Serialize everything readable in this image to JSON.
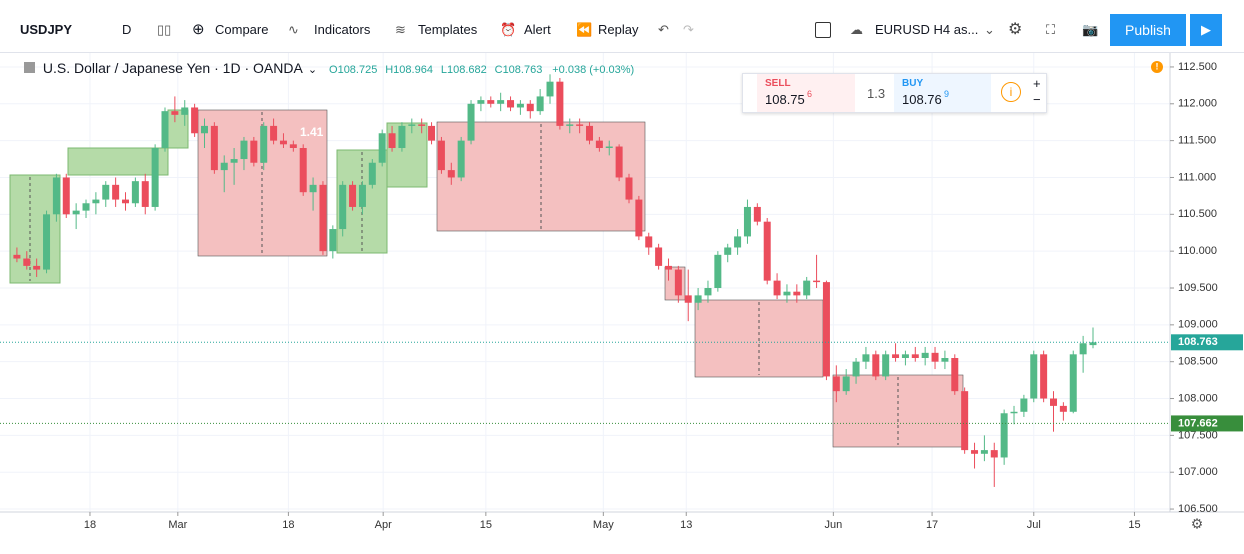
{
  "toolbar": {
    "symbol": "USDJPY",
    "interval": "D",
    "compare": "Compare",
    "indicators": "Indicators",
    "templates": "Templates",
    "alert": "Alert",
    "replay": "Replay",
    "layout": "EURUSD H4 as...",
    "publish": "Publish"
  },
  "legend": {
    "title": "U.S. Dollar / Japanese Yen · 1D · OANDA",
    "open": "O108.725",
    "high": "H108.964",
    "low": "L108.682",
    "close": "C108.763",
    "change": "+0.038 (+0.03%)"
  },
  "trade": {
    "sell_label": "SELL",
    "sell_price": "108.75",
    "sell_pip": "6",
    "spread": "1.3",
    "buy_label": "BUY",
    "buy_price": "108.76",
    "buy_pip": "9"
  },
  "chart_data": {
    "type": "candlestick",
    "up_color": "#53b987",
    "down_color": "#eb4d5c",
    "grid": true,
    "annotations": [
      "1.41"
    ],
    "ylim": [
      106.46,
      112.73
    ],
    "yticks": [
      {
        "value": 106.5,
        "label": "106.500"
      },
      {
        "value": 107,
        "label": "107.000"
      },
      {
        "value": 107.5,
        "label": "107.500"
      },
      {
        "value": 108,
        "label": "108.000"
      },
      {
        "value": 108.5,
        "label": "108.500"
      },
      {
        "value": 109,
        "label": "109.000"
      },
      {
        "value": 109.5,
        "label": "109.500"
      },
      {
        "value": 110,
        "label": "110.000"
      },
      {
        "value": 110.5,
        "label": "110.500"
      },
      {
        "value": 111,
        "label": "111.000"
      },
      {
        "value": 111.5,
        "label": "111.500"
      },
      {
        "value": 112,
        "label": "112.000"
      },
      {
        "value": 112.5,
        "label": "112.500"
      }
    ],
    "xlim": [
      -0.7,
      116.8
    ],
    "xticks": [
      {
        "value": 7.4,
        "label": "18"
      },
      {
        "value": 16.3,
        "label": "Mar"
      },
      {
        "value": 27.5,
        "label": "18"
      },
      {
        "value": 37.1,
        "label": "Apr"
      },
      {
        "value": 47.5,
        "label": "15"
      },
      {
        "value": 59.4,
        "label": "May"
      },
      {
        "value": 67.8,
        "label": "13"
      },
      {
        "value": 82.7,
        "label": "Jun"
      },
      {
        "value": 92.7,
        "label": "17"
      },
      {
        "value": 103,
        "label": "Jul"
      },
      {
        "value": 113.2,
        "label": "15"
      }
    ],
    "price_lines": [
      {
        "value": 108.763,
        "color": "#26a69a"
      },
      {
        "value": 107.662,
        "color": "#388e3c"
      }
    ],
    "open": [
      109.95,
      109.9,
      109.8,
      109.75,
      110.5,
      111.0,
      110.5,
      110.55,
      110.65,
      110.7,
      110.9,
      110.7,
      110.65,
      110.95,
      110.6,
      111.4,
      111.9,
      111.85,
      111.95,
      111.6,
      111.7,
      111.1,
      111.2,
      111.25,
      111.5,
      111.2,
      111.7,
      111.5,
      111.45,
      111.4,
      110.8,
      110.9,
      110.0,
      110.3,
      110.9,
      110.6,
      110.9,
      111.2,
      111.6,
      111.4,
      111.7,
      111.72,
      111.7,
      111.5,
      111.1,
      111.0,
      111.5,
      112.0,
      112.05,
      112.0,
      112.05,
      111.95,
      112.0,
      111.9,
      112.1,
      112.3,
      111.7,
      111.72,
      111.7,
      111.5,
      111.4,
      111.42,
      111.0,
      110.7,
      110.2,
      110.05,
      109.8,
      109.75,
      109.4,
      109.3,
      109.4,
      109.5,
      109.95,
      110.05,
      110.2,
      110.6,
      110.4,
      109.6,
      109.4,
      109.45,
      109.4,
      109.6,
      109.58,
      108.3,
      108.1,
      108.3,
      108.5,
      108.6,
      108.3,
      108.6,
      108.55,
      108.6,
      108.55,
      108.62,
      108.5,
      108.55,
      108.1,
      107.3,
      107.25,
      107.3,
      107.2,
      107.8,
      107.82,
      108.0,
      108.6,
      108.0,
      107.9,
      107.82,
      108.6,
      108.725
    ],
    "high": [
      110.05,
      110.0,
      109.9,
      110.55,
      111.05,
      111.05,
      110.65,
      110.7,
      110.8,
      110.95,
      111.0,
      110.8,
      111.0,
      111.05,
      111.45,
      111.95,
      112.1,
      112.05,
      112.0,
      111.8,
      111.75,
      111.3,
      111.4,
      111.55,
      111.55,
      111.75,
      111.8,
      111.6,
      111.5,
      111.45,
      111.0,
      110.95,
      110.35,
      110.95,
      110.95,
      110.95,
      111.25,
      111.65,
      111.7,
      111.75,
      111.8,
      111.8,
      111.75,
      111.55,
      111.2,
      111.55,
      112.05,
      112.1,
      112.1,
      112.15,
      112.1,
      112.05,
      112.05,
      112.2,
      112.4,
      112.35,
      111.8,
      111.8,
      111.75,
      111.55,
      111.5,
      111.45,
      111.05,
      110.75,
      110.25,
      110.1,
      109.9,
      109.8,
      109.75,
      109.5,
      109.6,
      110.0,
      110.1,
      110.3,
      110.7,
      110.65,
      110.45,
      109.7,
      109.55,
      109.55,
      109.65,
      109.95,
      109.6,
      108.45,
      108.4,
      108.55,
      108.7,
      108.65,
      108.65,
      108.75,
      108.65,
      108.7,
      108.7,
      108.7,
      108.65,
      108.6,
      108.15,
      107.4,
      107.5,
      107.4,
      107.85,
      107.9,
      108.05,
      108.65,
      108.65,
      108.1,
      107.95,
      108.65,
      108.85,
      108.964
    ],
    "low": [
      109.85,
      109.75,
      109.65,
      109.7,
      110.4,
      110.45,
      110.3,
      110.45,
      110.5,
      110.6,
      110.6,
      110.55,
      110.6,
      110.5,
      110.55,
      111.35,
      111.75,
      111.7,
      111.55,
      111.4,
      111.05,
      110.8,
      110.9,
      111.1,
      111.15,
      111.1,
      111.45,
      111.4,
      111.35,
      110.75,
      110.55,
      109.95,
      109.9,
      110.2,
      110.55,
      110.5,
      110.85,
      111.15,
      111.35,
      111.35,
      111.6,
      111.6,
      111.45,
      111.05,
      110.9,
      110.95,
      111.45,
      111.9,
      111.95,
      111.9,
      111.9,
      111.85,
      111.8,
      111.85,
      112.0,
      111.65,
      111.6,
      111.6,
      111.45,
      111.35,
      111.3,
      110.95,
      110.65,
      110.15,
      109.95,
      109.75,
      109.6,
      109.3,
      109.05,
      109.2,
      109.3,
      109.45,
      109.85,
      109.95,
      110.1,
      110.35,
      109.55,
      109.35,
      109.3,
      109.3,
      109.35,
      109.5,
      108.25,
      107.95,
      108.05,
      108.2,
      108.4,
      108.25,
      108.25,
      108.5,
      108.45,
      108.5,
      108.45,
      108.4,
      108.4,
      108.05,
      107.25,
      107.05,
      107.15,
      106.8,
      107.1,
      107.65,
      107.75,
      107.95,
      107.95,
      107.55,
      107.7,
      107.8,
      108.35,
      108.682
    ],
    "close": [
      109.9,
      109.8,
      109.75,
      110.5,
      111.0,
      110.5,
      110.55,
      110.65,
      110.7,
      110.9,
      110.7,
      110.65,
      110.95,
      110.6,
      111.4,
      111.9,
      111.85,
      111.95,
      111.6,
      111.7,
      111.1,
      111.2,
      111.25,
      111.5,
      111.2,
      111.7,
      111.5,
      111.45,
      111.4,
      110.8,
      110.9,
      110.0,
      110.3,
      110.9,
      110.6,
      110.9,
      111.2,
      111.6,
      111.4,
      111.7,
      111.72,
      111.7,
      111.5,
      111.1,
      111.0,
      111.5,
      112.0,
      112.05,
      112.0,
      112.05,
      111.95,
      112.0,
      111.9,
      112.1,
      112.3,
      111.7,
      111.72,
      111.7,
      111.5,
      111.4,
      111.42,
      111.0,
      110.7,
      110.2,
      110.05,
      109.8,
      109.75,
      109.4,
      109.3,
      109.4,
      109.5,
      109.95,
      110.05,
      110.2,
      110.6,
      110.4,
      109.6,
      109.4,
      109.45,
      109.4,
      109.6,
      109.58,
      108.3,
      108.1,
      108.3,
      108.5,
      108.6,
      108.3,
      108.6,
      108.55,
      108.6,
      108.55,
      108.62,
      108.5,
      108.55,
      108.1,
      107.3,
      107.25,
      107.3,
      107.2,
      107.8,
      107.82,
      108.0,
      108.6,
      108.0,
      107.9,
      107.82,
      108.6,
      108.75,
      108.763
    ]
  }
}
